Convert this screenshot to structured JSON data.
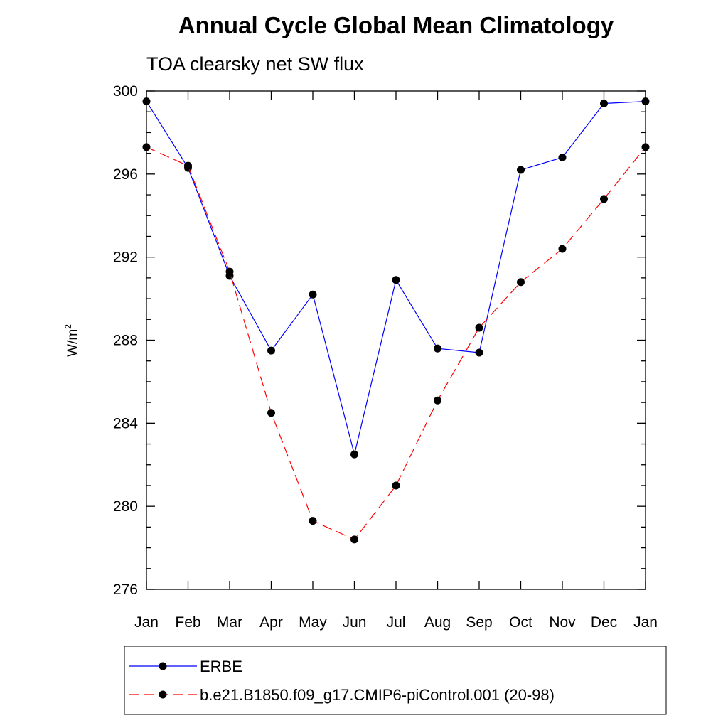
{
  "chart_data": {
    "type": "line",
    "title": "Annual Cycle Global Mean Climatology",
    "subtitle": "TOA clearsky net SW flux",
    "xlabel": "",
    "ylabel": "W/m",
    "ylabel_superscript": "2",
    "categories": [
      "Jan",
      "Feb",
      "Mar",
      "Apr",
      "May",
      "Jun",
      "Jul",
      "Aug",
      "Sep",
      "Oct",
      "Nov",
      "Dec",
      "Jan"
    ],
    "ylim": [
      276,
      300
    ],
    "yticks": [
      276,
      280,
      284,
      288,
      292,
      296,
      300
    ],
    "y_minor_step": 1,
    "grid": false,
    "legend_placement": "bottom, outside plot",
    "series": [
      {
        "name": "ERBE",
        "color": "#0000ff",
        "line_style": "solid",
        "marker": "filled-circle",
        "values": [
          299.5,
          296.3,
          291.1,
          287.5,
          290.2,
          282.5,
          290.9,
          287.6,
          287.4,
          296.2,
          296.8,
          299.4,
          299.5
        ]
      },
      {
        "name": "b.e21.B1850.f09_g17.CMIP6-piControl.001 (20-98)",
        "color": "#ff0000",
        "line_style": "dashed",
        "marker": "filled-circle",
        "values": [
          297.3,
          296.4,
          291.3,
          284.5,
          279.3,
          278.4,
          281.0,
          285.1,
          288.6,
          290.8,
          292.4,
          294.8,
          297.3
        ]
      }
    ]
  }
}
